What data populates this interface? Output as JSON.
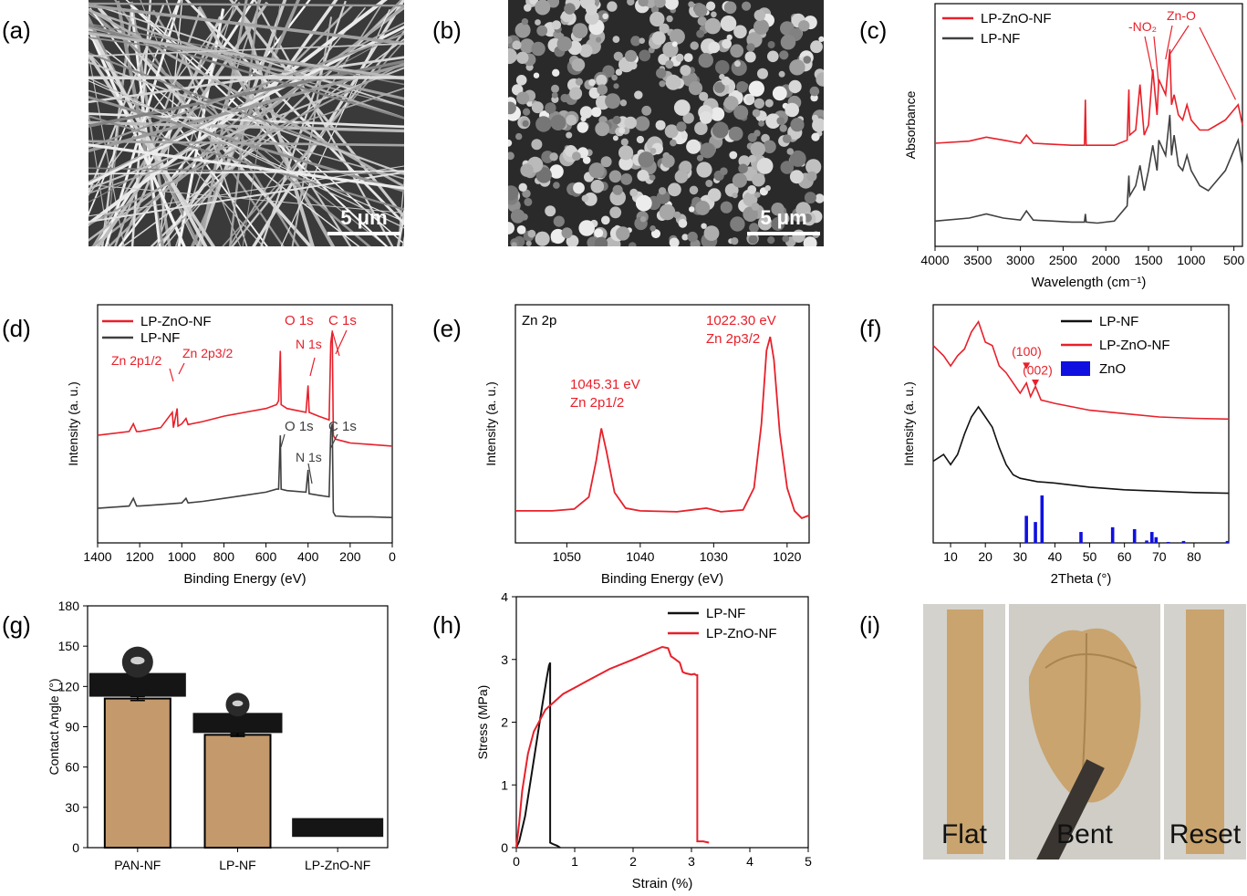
{
  "panels": {
    "a": {
      "label": "(a)",
      "scalebar": "5 μm"
    },
    "b": {
      "label": "(b)",
      "scalebar": "5 μm"
    },
    "c": {
      "label": "(c)"
    },
    "d": {
      "label": "(d)"
    },
    "e": {
      "label": "(e)"
    },
    "f": {
      "label": "(f)"
    },
    "g": {
      "label": "(g)"
    },
    "h": {
      "label": "(h)"
    },
    "i": {
      "label": "(i)",
      "captions": [
        "Flat",
        "Bent",
        "Reset"
      ]
    }
  },
  "colors": {
    "red": "#e8202a",
    "black": "#111111",
    "grey": "#404040",
    "blue": "#1010e0",
    "tan": "#c49a6c"
  },
  "chart_data": [
    {
      "id": "c",
      "type": "line",
      "xlabel": "Wavelength (cm⁻¹)",
      "ylabel": "Absorbance",
      "xlim": [
        4000,
        400
      ],
      "xticks": [
        4000,
        3500,
        3000,
        2500,
        2000,
        1500,
        1000,
        500
      ],
      "series": [
        {
          "name": "LP-ZnO-NF",
          "color": "#e8202a",
          "x": [
            4000,
            3600,
            3400,
            3200,
            3000,
            2930,
            2850,
            2400,
            2250,
            2240,
            2230,
            2100,
            1900,
            1750,
            1730,
            1720,
            1650,
            1600,
            1550,
            1500,
            1450,
            1400,
            1380,
            1300,
            1250,
            1230,
            1200,
            1150,
            1100,
            1050,
            1000,
            900,
            800,
            700,
            600,
            500,
            450,
            400
          ],
          "y": [
            0.82,
            0.84,
            0.88,
            0.85,
            0.82,
            0.9,
            0.82,
            0.8,
            0.8,
            1.25,
            0.8,
            0.8,
            0.8,
            0.85,
            1.35,
            0.9,
            0.95,
            1.4,
            0.9,
            1.0,
            1.55,
            1.1,
            1.45,
            1.3,
            1.75,
            1.2,
            1.3,
            1.1,
            1.05,
            1.2,
            1.05,
            0.95,
            0.95,
            1.0,
            1.05,
            1.15,
            1.2,
            1.0
          ]
        },
        {
          "name": "LP-NF",
          "color": "#404040",
          "x": [
            4000,
            3600,
            3400,
            3200,
            3000,
            2930,
            2850,
            2400,
            2250,
            2240,
            2230,
            2100,
            1900,
            1750,
            1730,
            1720,
            1650,
            1600,
            1550,
            1500,
            1450,
            1400,
            1380,
            1300,
            1250,
            1230,
            1200,
            1150,
            1100,
            1050,
            1000,
            900,
            800,
            700,
            600,
            500,
            450,
            400
          ],
          "y": [
            0.05,
            0.08,
            0.12,
            0.08,
            0.06,
            0.15,
            0.06,
            0.04,
            0.04,
            0.12,
            0.04,
            0.03,
            0.05,
            0.2,
            0.5,
            0.3,
            0.4,
            0.6,
            0.35,
            0.55,
            0.8,
            0.55,
            0.85,
            0.7,
            1.1,
            0.7,
            0.9,
            0.6,
            0.55,
            0.7,
            0.55,
            0.4,
            0.35,
            0.45,
            0.55,
            0.75,
            0.85,
            0.6
          ]
        }
      ],
      "annotations": [
        "-NO₂",
        "Zn-O"
      ]
    },
    {
      "id": "d",
      "type": "line",
      "xlabel": "Binding Energy (eV)",
      "ylabel": "Intensity (a. u.)",
      "xlim": [
        1400,
        0
      ],
      "xticks": [
        1400,
        1200,
        1000,
        800,
        600,
        400,
        200,
        0
      ],
      "series": [
        {
          "name": "LP-ZnO-NF",
          "color": "#e8202a",
          "x": [
            1400,
            1250,
            1230,
            1215,
            1200,
            1100,
            1045,
            1040,
            1022,
            1018,
            1000,
            980,
            970,
            900,
            800,
            700,
            600,
            550,
            540,
            532,
            528,
            500,
            410,
            400,
            395,
            350,
            300,
            292,
            285,
            280,
            270,
            200,
            100,
            0
          ],
          "y": [
            1.0,
            1.05,
            1.15,
            1.05,
            1.05,
            1.1,
            1.3,
            1.1,
            1.35,
            1.12,
            1.15,
            1.22,
            1.14,
            1.18,
            1.25,
            1.3,
            1.35,
            1.4,
            1.45,
            2.1,
            1.4,
            1.35,
            1.3,
            1.65,
            1.3,
            1.25,
            1.2,
            2.2,
            2.35,
            1.0,
            0.95,
            0.9,
            0.88,
            0.86
          ]
        },
        {
          "name": "LP-NF",
          "color": "#404040",
          "x": [
            1400,
            1250,
            1230,
            1215,
            1200,
            1100,
            1000,
            980,
            970,
            900,
            800,
            700,
            600,
            550,
            540,
            532,
            528,
            500,
            410,
            400,
            395,
            350,
            300,
            292,
            285,
            280,
            270,
            200,
            100,
            0
          ],
          "y": [
            0.05,
            0.08,
            0.18,
            0.08,
            0.08,
            0.1,
            0.12,
            0.18,
            0.12,
            0.14,
            0.18,
            0.22,
            0.26,
            0.3,
            0.3,
            1.0,
            0.3,
            0.28,
            0.26,
            0.55,
            0.24,
            0.22,
            0.2,
            1.05,
            1.15,
            0.0,
            -0.05,
            -0.06,
            -0.06,
            -0.07
          ]
        }
      ],
      "annotations": [
        "Zn 2p1/2",
        "Zn 2p3/2",
        "O 1s",
        "N 1s",
        "C 1s",
        "O 1s",
        "N 1s",
        "C 1s"
      ]
    },
    {
      "id": "e",
      "type": "line",
      "xlabel": "Binding Energy (eV)",
      "ylabel": "Intensity (a. u.)",
      "xlim": [
        1057,
        1017
      ],
      "xticks": [
        1050,
        1040,
        1030,
        1020
      ],
      "series": [
        {
          "name": "Zn 2p",
          "color": "#e8202a",
          "x": [
            1057,
            1052,
            1049,
            1047,
            1046,
            1045.3,
            1044.6,
            1043.5,
            1042,
            1040,
            1035,
            1031,
            1029,
            1026,
            1024.5,
            1023.5,
            1022.8,
            1022.3,
            1021.8,
            1021,
            1020,
            1019,
            1018,
            1017
          ],
          "y": [
            0.05,
            0.05,
            0.07,
            0.2,
            0.6,
            0.95,
            0.7,
            0.25,
            0.08,
            0.05,
            0.04,
            0.08,
            0.04,
            0.06,
            0.3,
            1.0,
            1.8,
            1.95,
            1.7,
            0.9,
            0.3,
            0.05,
            -0.03,
            0.0
          ]
        }
      ],
      "annotations": [
        "Zn 2p",
        "1045.31 eV",
        "Zn 2p1/2",
        "1022.30 eV",
        "Zn 2p3/2"
      ]
    },
    {
      "id": "f",
      "type": "line",
      "xlabel": "2Theta (°)",
      "ylabel": "Intensity (a. u.)",
      "xlim": [
        5,
        90
      ],
      "xticks": [
        10,
        20,
        30,
        40,
        50,
        60,
        70,
        80
      ],
      "series": [
        {
          "name": "LP-NF",
          "color": "#111111",
          "x": [
            5,
            8,
            10,
            12,
            14,
            16,
            18,
            20,
            22,
            24,
            26,
            28,
            30,
            35,
            40,
            50,
            60,
            70,
            80,
            90
          ],
          "y": [
            1.2,
            1.3,
            1.15,
            1.3,
            1.6,
            1.85,
            2.0,
            1.85,
            1.7,
            1.4,
            1.15,
            1.0,
            0.95,
            0.9,
            0.88,
            0.82,
            0.78,
            0.76,
            0.74,
            0.73
          ]
        },
        {
          "name": "LP-ZnO-NF",
          "color": "#e8202a",
          "x": [
            5,
            8,
            10,
            12,
            14,
            16,
            18,
            20,
            22,
            24,
            26,
            28,
            30,
            31.8,
            33,
            34.4,
            36,
            40,
            50,
            60,
            70,
            80,
            90
          ],
          "y": [
            2.9,
            2.75,
            2.6,
            2.75,
            2.85,
            3.1,
            3.25,
            2.95,
            2.9,
            2.6,
            2.5,
            2.35,
            2.2,
            2.35,
            2.15,
            2.3,
            2.1,
            2.05,
            1.95,
            1.9,
            1.85,
            1.83,
            1.82
          ]
        },
        {
          "name": "ZnO",
          "color": "#1010e0",
          "type": "stick",
          "x": [
            31.8,
            34.4,
            36.3,
            47.5,
            56.6,
            62.9,
            66.4,
            67.9,
            69.1,
            72.6,
            77.0,
            89.6
          ],
          "y": [
            0.57,
            0.44,
            1.0,
            0.23,
            0.33,
            0.29,
            0.05,
            0.23,
            0.12,
            0.02,
            0.04,
            0.04
          ]
        }
      ],
      "annotations": [
        "(100)",
        "(002)"
      ]
    },
    {
      "id": "g",
      "type": "bar",
      "ylabel": "Contact Angle (°)",
      "ylim": [
        0,
        180
      ],
      "yticks": [
        0,
        30,
        60,
        90,
        120,
        150,
        180
      ],
      "categories": [
        "PAN-NF",
        "LP-NF",
        "LP-ZnO-NF"
      ],
      "values": [
        111,
        84,
        0
      ],
      "errors": [
        1.5,
        1.2,
        0
      ]
    },
    {
      "id": "h",
      "type": "line",
      "xlabel": "Strain (%)",
      "ylabel": "Stress (MPa)",
      "xlim": [
        0,
        5
      ],
      "ylim": [
        0,
        4
      ],
      "xticks": [
        0,
        1,
        2,
        3,
        4,
        5
      ],
      "yticks": [
        0,
        1,
        2,
        3,
        4
      ],
      "series": [
        {
          "name": "LP-NF",
          "color": "#111111",
          "x": [
            0,
            0.05,
            0.15,
            0.25,
            0.35,
            0.45,
            0.52,
            0.56,
            0.58,
            0.58,
            0.62,
            0.7,
            0.75
          ],
          "y": [
            0,
            0.1,
            0.5,
            1.1,
            1.7,
            2.3,
            2.7,
            2.9,
            2.95,
            0.08,
            0.06,
            0.03,
            0
          ]
        },
        {
          "name": "LP-ZnO-NF",
          "color": "#e8202a",
          "x": [
            0,
            0.05,
            0.1,
            0.2,
            0.3,
            0.5,
            0.8,
            1.2,
            1.6,
            2.0,
            2.3,
            2.5,
            2.6,
            2.65,
            2.7,
            2.8,
            2.85,
            2.9,
            3.0,
            3.05,
            3.08,
            3.1,
            3.1,
            3.2,
            3.3
          ],
          "y": [
            0,
            0.4,
            0.9,
            1.5,
            1.85,
            2.2,
            2.45,
            2.65,
            2.85,
            3.0,
            3.12,
            3.2,
            3.18,
            3.05,
            3.02,
            2.95,
            2.8,
            2.78,
            2.76,
            2.77,
            2.75,
            2.75,
            0.1,
            0.1,
            0.08
          ]
        }
      ]
    }
  ]
}
